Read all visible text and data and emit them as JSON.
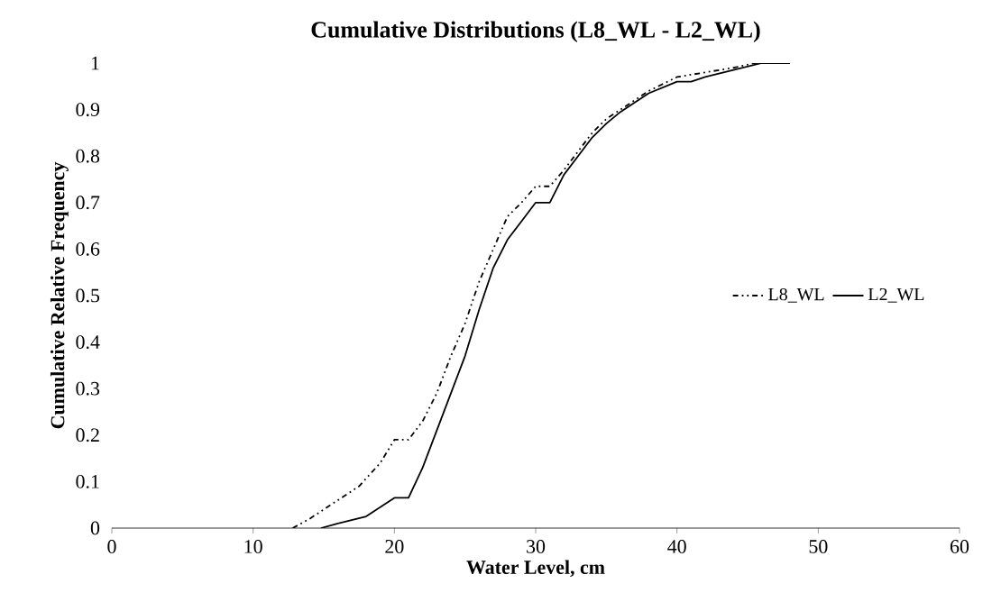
{
  "chart_data": {
    "type": "line",
    "title": "Cumulative Distributions (L8_WL - L2_WL)",
    "xlabel": "Water Level, cm",
    "ylabel": "Cumulative Relative Frequency",
    "xlim": [
      0,
      60
    ],
    "xticks": [
      0,
      10,
      20,
      30,
      40,
      50,
      60
    ],
    "ylim": [
      0,
      1
    ],
    "yticks": [
      0,
      0.1,
      0.2,
      0.3,
      0.4,
      0.5,
      0.6,
      0.7,
      0.8,
      0.9,
      1
    ],
    "grid": false,
    "legend": "right",
    "marker": "none",
    "series": [
      {
        "name": "L8_WL",
        "color": "#000000",
        "line_style": "dashed",
        "x": [
          12.8,
          14,
          16,
          17.5,
          19,
          20,
          21,
          22,
          23,
          24,
          25,
          26,
          27,
          28,
          29,
          30,
          31,
          32,
          33,
          34,
          35,
          36,
          38,
          40,
          42,
          44,
          45.5,
          48
        ],
        "values": [
          0,
          0.02,
          0.06,
          0.09,
          0.14,
          0.19,
          0.19,
          0.23,
          0.29,
          0.37,
          0.44,
          0.53,
          0.6,
          0.67,
          0.7,
          0.735,
          0.735,
          0.77,
          0.81,
          0.85,
          0.88,
          0.9,
          0.94,
          0.97,
          0.98,
          0.99,
          1,
          1
        ]
      },
      {
        "name": "L2_WL",
        "color": "#000000",
        "line_style": "solid",
        "x": [
          14.8,
          16,
          18,
          19,
          20,
          21,
          22,
          23,
          24,
          25,
          26,
          27,
          28,
          29,
          30,
          31,
          32,
          33,
          34,
          35,
          36,
          38,
          40,
          41,
          42,
          44,
          46,
          48
        ],
        "values": [
          0,
          0.01,
          0.025,
          0.045,
          0.065,
          0.065,
          0.13,
          0.21,
          0.29,
          0.37,
          0.47,
          0.56,
          0.62,
          0.66,
          0.7,
          0.7,
          0.76,
          0.8,
          0.84,
          0.87,
          0.895,
          0.935,
          0.96,
          0.96,
          0.97,
          0.985,
          1,
          1
        ]
      }
    ]
  }
}
